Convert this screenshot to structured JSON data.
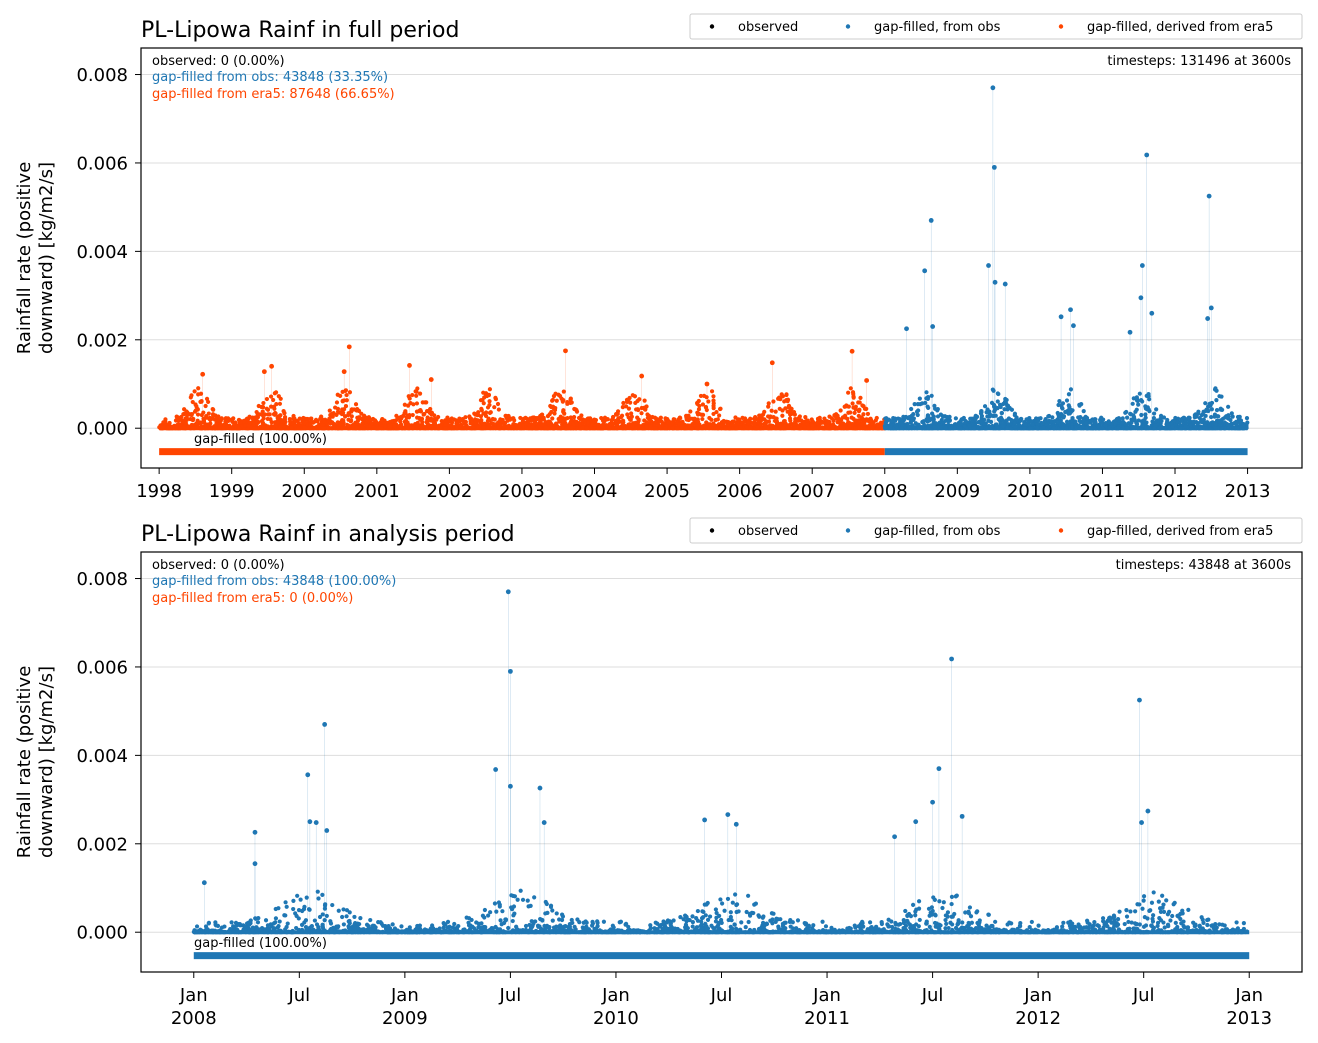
{
  "colors": {
    "observed": "#000000",
    "obs": "#1f77b4",
    "era5": "#ff4500",
    "grid": "#dddddd"
  },
  "legend": {
    "observed": "observed",
    "obs": "gap-filled, from obs",
    "era5": "gap-filled, derived from era5"
  },
  "chart_data": [
    {
      "type": "scatter",
      "title": "PL-Lipowa Rainf in full period",
      "ylabel_line1": "Rainfall rate (positive",
      "ylabel_line2": "downward) [kg/m2/s]",
      "ylim": [
        -0.0009,
        0.0086
      ],
      "xlim": [
        1997.75,
        2013.75
      ],
      "y_ticks": [
        "0.000",
        "0.002",
        "0.004",
        "0.006",
        "0.008"
      ],
      "y_tick_values": [
        0,
        0.002,
        0.004,
        0.006,
        0.008
      ],
      "x_ticks": [
        {
          "v": 1998,
          "l1": "1998",
          "l2": ""
        },
        {
          "v": 1999,
          "l1": "1999",
          "l2": ""
        },
        {
          "v": 2000,
          "l1": "2000",
          "l2": ""
        },
        {
          "v": 2001,
          "l1": "2001",
          "l2": ""
        },
        {
          "v": 2002,
          "l1": "2002",
          "l2": ""
        },
        {
          "v": 2003,
          "l1": "2003",
          "l2": ""
        },
        {
          "v": 2004,
          "l1": "2004",
          "l2": ""
        },
        {
          "v": 2005,
          "l1": "2005",
          "l2": ""
        },
        {
          "v": 2006,
          "l1": "2006",
          "l2": ""
        },
        {
          "v": 2007,
          "l1": "2007",
          "l2": ""
        },
        {
          "v": 2008,
          "l1": "2008",
          "l2": ""
        },
        {
          "v": 2009,
          "l1": "2009",
          "l2": ""
        },
        {
          "v": 2010,
          "l1": "2010",
          "l2": ""
        },
        {
          "v": 2011,
          "l1": "2011",
          "l2": ""
        },
        {
          "v": 2012,
          "l1": "2012",
          "l2": ""
        },
        {
          "v": 2013,
          "l1": "2013",
          "l2": ""
        }
      ],
      "stats": {
        "observed": "observed: 0 (0.00%)",
        "obs": "gap-filled from obs: 43848 (33.35%)",
        "era5": "gap-filled from era5: 87648 (66.65%)",
        "timesteps": "timesteps: 131496 at 3600s",
        "gapfilled": "gap-filled (100.00%)"
      },
      "bars": [
        {
          "series": "era5",
          "from": 1998,
          "to": 2008
        },
        {
          "series": "obs",
          "from": 2008,
          "to": 2013
        }
      ],
      "series": [
        {
          "name": "gap-filled, derived from era5",
          "key": "era5",
          "x_range": [
            1998,
            2008
          ]
        },
        {
          "name": "gap-filled, from obs",
          "key": "obs",
          "x_range": [
            2008,
            2013
          ]
        }
      ],
      "peaks": [
        {
          "x": 1998.6,
          "y": 0.00122,
          "s": "era5"
        },
        {
          "x": 1999.45,
          "y": 0.00128,
          "s": "era5"
        },
        {
          "x": 1999.55,
          "y": 0.0014,
          "s": "era5"
        },
        {
          "x": 2000.55,
          "y": 0.00128,
          "s": "era5"
        },
        {
          "x": 2000.62,
          "y": 0.00184,
          "s": "era5"
        },
        {
          "x": 2001.45,
          "y": 0.00142,
          "s": "era5"
        },
        {
          "x": 2001.75,
          "y": 0.0011,
          "s": "era5"
        },
        {
          "x": 2003.6,
          "y": 0.00175,
          "s": "era5"
        },
        {
          "x": 2004.65,
          "y": 0.00118,
          "s": "era5"
        },
        {
          "x": 2005.55,
          "y": 0.001,
          "s": "era5"
        },
        {
          "x": 2006.45,
          "y": 0.00148,
          "s": "era5"
        },
        {
          "x": 2007.55,
          "y": 0.00174,
          "s": "era5"
        },
        {
          "x": 2007.75,
          "y": 0.00108,
          "s": "era5"
        },
        {
          "x": 2008.3,
          "y": 0.00225,
          "s": "obs"
        },
        {
          "x": 2008.55,
          "y": 0.00356,
          "s": "obs"
        },
        {
          "x": 2008.64,
          "y": 0.0047,
          "s": "obs"
        },
        {
          "x": 2008.66,
          "y": 0.0023,
          "s": "obs"
        },
        {
          "x": 2009.43,
          "y": 0.00368,
          "s": "obs"
        },
        {
          "x": 2009.49,
          "y": 0.0077,
          "s": "obs"
        },
        {
          "x": 2009.51,
          "y": 0.0059,
          "s": "obs"
        },
        {
          "x": 2009.52,
          "y": 0.0033,
          "s": "obs"
        },
        {
          "x": 2009.66,
          "y": 0.00326,
          "s": "obs"
        },
        {
          "x": 2010.43,
          "y": 0.00252,
          "s": "obs"
        },
        {
          "x": 2010.56,
          "y": 0.00268,
          "s": "obs"
        },
        {
          "x": 2010.6,
          "y": 0.00232,
          "s": "obs"
        },
        {
          "x": 2011.38,
          "y": 0.00217,
          "s": "obs"
        },
        {
          "x": 2011.55,
          "y": 0.00368,
          "s": "obs"
        },
        {
          "x": 2011.53,
          "y": 0.00295,
          "s": "obs"
        },
        {
          "x": 2011.61,
          "y": 0.00618,
          "s": "obs"
        },
        {
          "x": 2011.68,
          "y": 0.0026,
          "s": "obs"
        },
        {
          "x": 2012.47,
          "y": 0.00525,
          "s": "obs"
        },
        {
          "x": 2012.5,
          "y": 0.00272,
          "s": "obs"
        },
        {
          "x": 2012.45,
          "y": 0.00248,
          "s": "obs"
        }
      ]
    },
    {
      "type": "scatter",
      "title": "PL-Lipowa Rainf in analysis period",
      "ylabel_line1": "Rainfall rate (positive",
      "ylabel_line2": "downward) [kg/m2/s]",
      "ylim": [
        -0.0009,
        0.0086
      ],
      "xlim": [
        2007.75,
        2013.25
      ],
      "y_ticks": [
        "0.000",
        "0.002",
        "0.004",
        "0.006",
        "0.008"
      ],
      "y_tick_values": [
        0,
        0.002,
        0.004,
        0.006,
        0.008
      ],
      "x_ticks": [
        {
          "v": 2008.0,
          "l1": "Jan",
          "l2": "2008"
        },
        {
          "v": 2008.5,
          "l1": "Jul",
          "l2": ""
        },
        {
          "v": 2009.0,
          "l1": "Jan",
          "l2": "2009"
        },
        {
          "v": 2009.5,
          "l1": "Jul",
          "l2": ""
        },
        {
          "v": 2010.0,
          "l1": "Jan",
          "l2": "2010"
        },
        {
          "v": 2010.5,
          "l1": "Jul",
          "l2": ""
        },
        {
          "v": 2011.0,
          "l1": "Jan",
          "l2": "2011"
        },
        {
          "v": 2011.5,
          "l1": "Jul",
          "l2": ""
        },
        {
          "v": 2012.0,
          "l1": "Jan",
          "l2": "2012"
        },
        {
          "v": 2012.5,
          "l1": "Jul",
          "l2": ""
        },
        {
          "v": 2013.0,
          "l1": "Jan",
          "l2": "2013"
        }
      ],
      "stats": {
        "observed": "observed: 0 (0.00%)",
        "obs": "gap-filled from obs: 43848 (100.00%)",
        "era5": "gap-filled from era5: 0 (0.00%)",
        "timesteps": "timesteps: 43848 at 3600s",
        "gapfilled": "gap-filled (100.00%)"
      },
      "bars": [
        {
          "series": "obs",
          "from": 2008,
          "to": 2013
        }
      ],
      "series": [
        {
          "name": "gap-filled, from obs",
          "key": "obs",
          "x_range": [
            2008,
            2013
          ]
        }
      ],
      "peaks": [
        {
          "x": 2008.05,
          "y": 0.00112,
          "s": "obs"
        },
        {
          "x": 2008.29,
          "y": 0.00226,
          "s": "obs"
        },
        {
          "x": 2008.29,
          "y": 0.00155,
          "s": "obs"
        },
        {
          "x": 2008.54,
          "y": 0.00356,
          "s": "obs"
        },
        {
          "x": 2008.55,
          "y": 0.0025,
          "s": "obs"
        },
        {
          "x": 2008.58,
          "y": 0.00248,
          "s": "obs"
        },
        {
          "x": 2008.62,
          "y": 0.0047,
          "s": "obs"
        },
        {
          "x": 2008.63,
          "y": 0.0023,
          "s": "obs"
        },
        {
          "x": 2009.43,
          "y": 0.00368,
          "s": "obs"
        },
        {
          "x": 2009.49,
          "y": 0.0077,
          "s": "obs"
        },
        {
          "x": 2009.5,
          "y": 0.0059,
          "s": "obs"
        },
        {
          "x": 2009.5,
          "y": 0.0033,
          "s": "obs"
        },
        {
          "x": 2009.64,
          "y": 0.00326,
          "s": "obs"
        },
        {
          "x": 2009.66,
          "y": 0.00248,
          "s": "obs"
        },
        {
          "x": 2010.42,
          "y": 0.00254,
          "s": "obs"
        },
        {
          "x": 2010.53,
          "y": 0.00266,
          "s": "obs"
        },
        {
          "x": 2010.57,
          "y": 0.00244,
          "s": "obs"
        },
        {
          "x": 2011.32,
          "y": 0.00216,
          "s": "obs"
        },
        {
          "x": 2011.42,
          "y": 0.0025,
          "s": "obs"
        },
        {
          "x": 2011.5,
          "y": 0.00294,
          "s": "obs"
        },
        {
          "x": 2011.53,
          "y": 0.0037,
          "s": "obs"
        },
        {
          "x": 2011.59,
          "y": 0.00618,
          "s": "obs"
        },
        {
          "x": 2011.64,
          "y": 0.00262,
          "s": "obs"
        },
        {
          "x": 2012.48,
          "y": 0.00525,
          "s": "obs"
        },
        {
          "x": 2012.49,
          "y": 0.00248,
          "s": "obs"
        },
        {
          "x": 2012.52,
          "y": 0.00274,
          "s": "obs"
        }
      ]
    }
  ]
}
